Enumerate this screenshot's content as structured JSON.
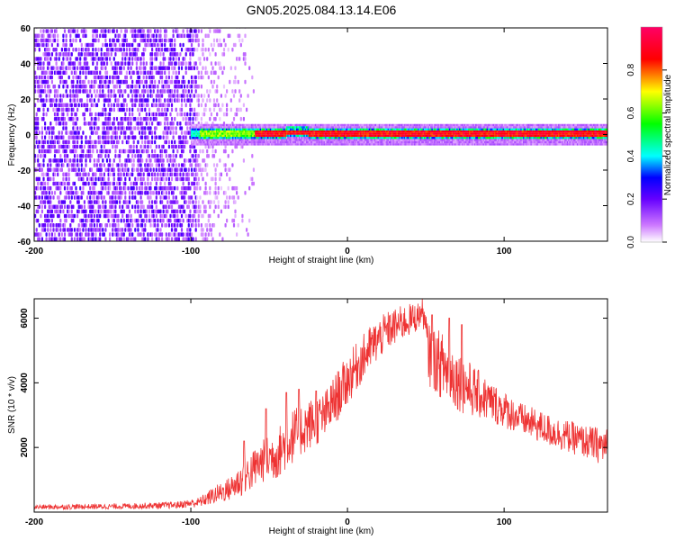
{
  "title": "GN05.2025.084.13.14.E06",
  "chart_data": [
    {
      "type": "heatmap",
      "panel": "spectrogram",
      "xlabel": "Height of straight line (km)",
      "ylabel": "Frequency (Hz)",
      "xlim": [
        -200,
        166
      ],
      "ylim": [
        -60,
        60
      ],
      "xticks": [
        -200,
        -100,
        0,
        100
      ],
      "yticks": [
        -60,
        -40,
        -20,
        0,
        20,
        40,
        60
      ],
      "noise_region_x": [
        -200,
        -60
      ],
      "dense_noise_until": -97,
      "signal_band": {
        "x_start": -100,
        "x_end": 166,
        "center_freq": 0,
        "half_width_hz": 3,
        "core_half_width_hz": 1.5
      },
      "colorbar": {
        "label": "Normalized spectral amplitude",
        "range": [
          0,
          1
        ],
        "ticks": [
          0.0,
          0.2,
          0.4,
          0.6,
          0.8
        ],
        "colors": [
          "#ffffff",
          "#cc77ff",
          "#6600ff",
          "#0000ff",
          "#00ffff",
          "#00ff00",
          "#ffff00",
          "#ff0000",
          "#ff0066"
        ]
      }
    },
    {
      "type": "line",
      "panel": "snr",
      "xlabel": "Height of straight line (km)",
      "ylabel": "SNR (10 * v/v)",
      "xlim": [
        -200,
        166
      ],
      "ylim": [
        0,
        6600
      ],
      "xticks": [
        -200,
        -100,
        0,
        100
      ],
      "yticks": [
        2000,
        4000,
        6000
      ],
      "color": "#ee3333",
      "envelope": {
        "x": [
          -200,
          -150,
          -110,
          -95,
          -85,
          -75,
          -65,
          -55,
          -45,
          -35,
          -25,
          -15,
          -5,
          5,
          15,
          25,
          35,
          45,
          48,
          52,
          60,
          75,
          90,
          110,
          130,
          150,
          166
        ],
        "lo": [
          80,
          90,
          110,
          150,
          250,
          350,
          500,
          900,
          1000,
          1500,
          1900,
          2200,
          2900,
          3700,
          4400,
          5000,
          5300,
          5600,
          5900,
          3900,
          3500,
          3000,
          2800,
          2400,
          2000,
          1700,
          1400
        ],
        "hi": [
          230,
          260,
          320,
          450,
          800,
          1100,
          1700,
          2200,
          2600,
          3200,
          3500,
          3700,
          4500,
          5200,
          5800,
          6200,
          6400,
          6500,
          6600,
          5800,
          5600,
          4800,
          4100,
          3400,
          3000,
          2700,
          2600
        ]
      },
      "spikes": [
        {
          "x": -66,
          "y": 2200
        },
        {
          "x": -52,
          "y": 3200
        },
        {
          "x": -39,
          "y": 3700
        },
        {
          "x": -31,
          "y": 3800
        },
        {
          "x": -20,
          "y": 3750
        },
        {
          "x": 54,
          "y": 6100
        },
        {
          "x": 65,
          "y": 6000
        },
        {
          "x": 73,
          "y": 5800
        }
      ]
    }
  ]
}
